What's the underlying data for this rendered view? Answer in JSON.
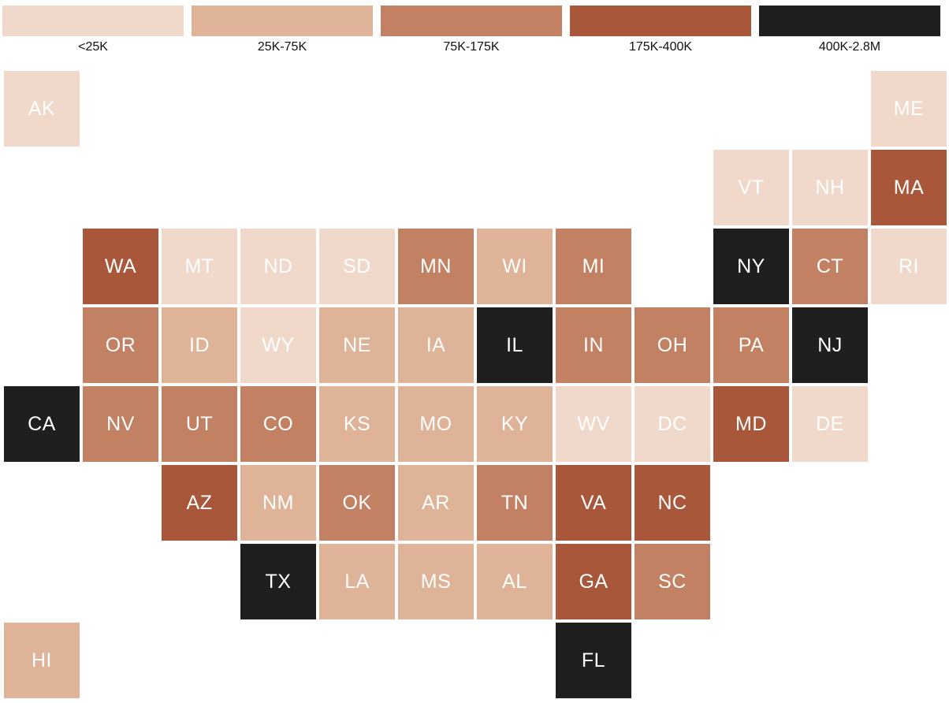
{
  "legend": [
    {
      "label": "<25K",
      "color": "#f0d9cb"
    },
    {
      "label": "25K-75K",
      "color": "#dfb397"
    },
    {
      "label": "75K-175K",
      "color": "#c38163"
    },
    {
      "label": "175K-400K",
      "color": "#a9573a"
    },
    {
      "label": "400K-2.8M",
      "color": "#1f1f1f"
    }
  ],
  "states": [
    {
      "abbr": "AK",
      "col": 0,
      "row": 0,
      "bin": 0
    },
    {
      "abbr": "ME",
      "col": 11,
      "row": 0,
      "bin": 0
    },
    {
      "abbr": "VT",
      "col": 9,
      "row": 1,
      "bin": 0
    },
    {
      "abbr": "NH",
      "col": 10,
      "row": 1,
      "bin": 0
    },
    {
      "abbr": "MA",
      "col": 11,
      "row": 1,
      "bin": 3
    },
    {
      "abbr": "WA",
      "col": 1,
      "row": 2,
      "bin": 3
    },
    {
      "abbr": "MT",
      "col": 2,
      "row": 2,
      "bin": 0
    },
    {
      "abbr": "ND",
      "col": 3,
      "row": 2,
      "bin": 0
    },
    {
      "abbr": "SD",
      "col": 4,
      "row": 2,
      "bin": 0
    },
    {
      "abbr": "MN",
      "col": 5,
      "row": 2,
      "bin": 2
    },
    {
      "abbr": "WI",
      "col": 6,
      "row": 2,
      "bin": 1
    },
    {
      "abbr": "MI",
      "col": 7,
      "row": 2,
      "bin": 2
    },
    {
      "abbr": "NY",
      "col": 9,
      "row": 2,
      "bin": 4
    },
    {
      "abbr": "CT",
      "col": 10,
      "row": 2,
      "bin": 2
    },
    {
      "abbr": "RI",
      "col": 11,
      "row": 2,
      "bin": 0
    },
    {
      "abbr": "OR",
      "col": 1,
      "row": 3,
      "bin": 2
    },
    {
      "abbr": "ID",
      "col": 2,
      "row": 3,
      "bin": 1
    },
    {
      "abbr": "WY",
      "col": 3,
      "row": 3,
      "bin": 0
    },
    {
      "abbr": "NE",
      "col": 4,
      "row": 3,
      "bin": 1
    },
    {
      "abbr": "IA",
      "col": 5,
      "row": 3,
      "bin": 1
    },
    {
      "abbr": "IL",
      "col": 6,
      "row": 3,
      "bin": 4
    },
    {
      "abbr": "IN",
      "col": 7,
      "row": 3,
      "bin": 2
    },
    {
      "abbr": "OH",
      "col": 8,
      "row": 3,
      "bin": 2
    },
    {
      "abbr": "PA",
      "col": 9,
      "row": 3,
      "bin": 2
    },
    {
      "abbr": "NJ",
      "col": 10,
      "row": 3,
      "bin": 4
    },
    {
      "abbr": "CA",
      "col": 0,
      "row": 4,
      "bin": 4
    },
    {
      "abbr": "NV",
      "col": 1,
      "row": 4,
      "bin": 2
    },
    {
      "abbr": "UT",
      "col": 2,
      "row": 4,
      "bin": 2
    },
    {
      "abbr": "CO",
      "col": 3,
      "row": 4,
      "bin": 2
    },
    {
      "abbr": "KS",
      "col": 4,
      "row": 4,
      "bin": 1
    },
    {
      "abbr": "MO",
      "col": 5,
      "row": 4,
      "bin": 1
    },
    {
      "abbr": "KY",
      "col": 6,
      "row": 4,
      "bin": 1
    },
    {
      "abbr": "WV",
      "col": 7,
      "row": 4,
      "bin": 0
    },
    {
      "abbr": "DC",
      "col": 8,
      "row": 4,
      "bin": 0
    },
    {
      "abbr": "MD",
      "col": 9,
      "row": 4,
      "bin": 3
    },
    {
      "abbr": "DE",
      "col": 10,
      "row": 4,
      "bin": 0
    },
    {
      "abbr": "AZ",
      "col": 2,
      "row": 5,
      "bin": 3
    },
    {
      "abbr": "NM",
      "col": 3,
      "row": 5,
      "bin": 1
    },
    {
      "abbr": "OK",
      "col": 4,
      "row": 5,
      "bin": 2
    },
    {
      "abbr": "AR",
      "col": 5,
      "row": 5,
      "bin": 1
    },
    {
      "abbr": "TN",
      "col": 6,
      "row": 5,
      "bin": 2
    },
    {
      "abbr": "VA",
      "col": 7,
      "row": 5,
      "bin": 3
    },
    {
      "abbr": "NC",
      "col": 8,
      "row": 5,
      "bin": 3
    },
    {
      "abbr": "TX",
      "col": 3,
      "row": 6,
      "bin": 4
    },
    {
      "abbr": "LA",
      "col": 4,
      "row": 6,
      "bin": 1
    },
    {
      "abbr": "MS",
      "col": 5,
      "row": 6,
      "bin": 1
    },
    {
      "abbr": "AL",
      "col": 6,
      "row": 6,
      "bin": 1
    },
    {
      "abbr": "GA",
      "col": 7,
      "row": 6,
      "bin": 3
    },
    {
      "abbr": "SC",
      "col": 8,
      "row": 6,
      "bin": 2
    },
    {
      "abbr": "HI",
      "col": 0,
      "row": 7,
      "bin": 1
    },
    {
      "abbr": "FL",
      "col": 7,
      "row": 7,
      "bin": 4
    }
  ]
}
